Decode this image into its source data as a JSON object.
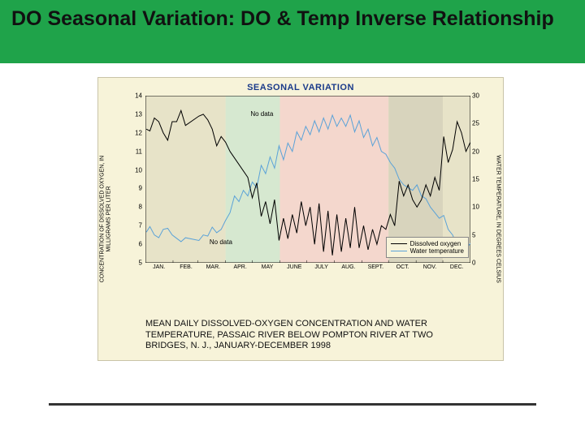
{
  "header": {
    "title": "DO Seasonal Variation: DO & Temp Inverse Relationship"
  },
  "chart": {
    "type": "line-dual-axis",
    "title": "SEASONAL VARIATION",
    "background_color": "#f7f3d9",
    "band_colors": [
      "#e7e3c8",
      "#d6e8d0",
      "#f4d7cd",
      "#d8d4bd",
      "#e7e3c8"
    ],
    "band_month_spans": [
      [
        0,
        3
      ],
      [
        3,
        5
      ],
      [
        5,
        9
      ],
      [
        9,
        11
      ],
      [
        11,
        12
      ]
    ],
    "x_months": [
      "JAN.",
      "FEB.",
      "MAR.",
      "APR.",
      "MAY",
      "JUNE",
      "JULY",
      "AUG.",
      "SEPT.",
      "OCT.",
      "NOV.",
      "DEC."
    ],
    "y_left": {
      "label": "CONCENTRATION OF DISSOLVED OXYGEN,\nIN MILLIGRAMS PER LITER",
      "min": 5,
      "max": 14,
      "ticks": [
        5,
        6,
        7,
        8,
        9,
        10,
        11,
        12,
        13,
        14
      ],
      "fontsize": 7
    },
    "y_right": {
      "label": "WATER TEMPERATURE, IN DEGREES CELSIUS",
      "min": 0,
      "max": 30,
      "ticks": [
        0,
        5,
        10,
        15,
        20,
        25,
        30
      ],
      "fontsize": 7
    },
    "series": {
      "do": {
        "label": "Dissolved oxygen",
        "color": "#000000",
        "line_width": 1,
        "nodata_ranges_days": [
          [
            47,
            56
          ],
          [
            100,
            112
          ]
        ],
        "values_by_day": [
          [
            1,
            12.2
          ],
          [
            5,
            12.1
          ],
          [
            10,
            12.8
          ],
          [
            15,
            12.6
          ],
          [
            20,
            12.0
          ],
          [
            25,
            11.6
          ],
          [
            30,
            12.6
          ],
          [
            35,
            12.6
          ],
          [
            40,
            13.2
          ],
          [
            45,
            12.4
          ],
          [
            60,
            12.9
          ],
          [
            65,
            13.0
          ],
          [
            70,
            12.7
          ],
          [
            75,
            12.2
          ],
          [
            80,
            11.3
          ],
          [
            85,
            11.8
          ],
          [
            90,
            11.5
          ],
          [
            95,
            11.0
          ],
          [
            115,
            9.6
          ],
          [
            120,
            8.5
          ],
          [
            125,
            9.3
          ],
          [
            130,
            7.5
          ],
          [
            135,
            8.3
          ],
          [
            140,
            7.1
          ],
          [
            145,
            8.4
          ],
          [
            150,
            6.2
          ],
          [
            155,
            7.4
          ],
          [
            160,
            6.3
          ],
          [
            165,
            7.6
          ],
          [
            170,
            6.6
          ],
          [
            175,
            8.3
          ],
          [
            180,
            7.0
          ],
          [
            185,
            8.0
          ],
          [
            190,
            6.0
          ],
          [
            195,
            8.2
          ],
          [
            200,
            5.6
          ],
          [
            205,
            7.8
          ],
          [
            210,
            5.4
          ],
          [
            215,
            7.6
          ],
          [
            220,
            5.6
          ],
          [
            225,
            7.4
          ],
          [
            230,
            5.8
          ],
          [
            235,
            8.0
          ],
          [
            240,
            5.8
          ],
          [
            245,
            7.0
          ],
          [
            250,
            5.7
          ],
          [
            255,
            6.8
          ],
          [
            260,
            6.0
          ],
          [
            265,
            7.0
          ],
          [
            270,
            6.8
          ],
          [
            275,
            7.6
          ],
          [
            280,
            7.0
          ],
          [
            285,
            9.4
          ],
          [
            290,
            8.6
          ],
          [
            295,
            9.2
          ],
          [
            300,
            8.4
          ],
          [
            305,
            8.0
          ],
          [
            310,
            8.4
          ],
          [
            315,
            9.2
          ],
          [
            320,
            8.6
          ],
          [
            325,
            9.6
          ],
          [
            330,
            8.9
          ],
          [
            335,
            11.8
          ],
          [
            340,
            10.4
          ],
          [
            345,
            11.1
          ],
          [
            350,
            12.6
          ],
          [
            355,
            12.0
          ],
          [
            360,
            11.0
          ],
          [
            365,
            11.5
          ]
        ]
      },
      "temp": {
        "label": "Water temperature",
        "color": "#5aa2d8",
        "line_width": 1,
        "nodata_ranges_days": [
          [
            47,
            56
          ]
        ],
        "values_by_day": [
          [
            1,
            5.5
          ],
          [
            5,
            6.5
          ],
          [
            10,
            5.0
          ],
          [
            15,
            4.5
          ],
          [
            20,
            6.0
          ],
          [
            25,
            6.2
          ],
          [
            30,
            5.0
          ],
          [
            35,
            4.4
          ],
          [
            40,
            3.8
          ],
          [
            45,
            4.5
          ],
          [
            60,
            4.0
          ],
          [
            65,
            5.0
          ],
          [
            70,
            4.8
          ],
          [
            75,
            6.4
          ],
          [
            80,
            5.4
          ],
          [
            85,
            6.0
          ],
          [
            90,
            7.6
          ],
          [
            95,
            9.0
          ],
          [
            100,
            12.0
          ],
          [
            105,
            11.0
          ],
          [
            110,
            13.0
          ],
          [
            115,
            12.0
          ],
          [
            120,
            14.5
          ],
          [
            125,
            13.5
          ],
          [
            130,
            17.5
          ],
          [
            135,
            16.0
          ],
          [
            140,
            19.0
          ],
          [
            145,
            17.0
          ],
          [
            150,
            21.0
          ],
          [
            155,
            18.5
          ],
          [
            160,
            21.5
          ],
          [
            165,
            20.0
          ],
          [
            170,
            23.5
          ],
          [
            175,
            22.0
          ],
          [
            180,
            24.5
          ],
          [
            185,
            23.0
          ],
          [
            190,
            25.5
          ],
          [
            195,
            23.5
          ],
          [
            200,
            26.0
          ],
          [
            205,
            24.0
          ],
          [
            210,
            26.5
          ],
          [
            215,
            24.5
          ],
          [
            220,
            26.0
          ],
          [
            225,
            24.5
          ],
          [
            230,
            26.5
          ],
          [
            235,
            23.5
          ],
          [
            240,
            25.5
          ],
          [
            245,
            22.5
          ],
          [
            250,
            24.0
          ],
          [
            255,
            21.0
          ],
          [
            260,
            22.5
          ],
          [
            265,
            20.0
          ],
          [
            270,
            19.5
          ],
          [
            275,
            18.0
          ],
          [
            280,
            17.0
          ],
          [
            285,
            15.0
          ],
          [
            290,
            14.0
          ],
          [
            295,
            13.5
          ],
          [
            300,
            13.0
          ],
          [
            305,
            14.0
          ],
          [
            310,
            12.0
          ],
          [
            315,
            11.5
          ],
          [
            320,
            10.0
          ],
          [
            325,
            9.0
          ],
          [
            330,
            8.0
          ],
          [
            335,
            8.5
          ],
          [
            340,
            6.0
          ],
          [
            345,
            5.0
          ],
          [
            350,
            3.0
          ],
          [
            355,
            4.5
          ],
          [
            360,
            2.5
          ],
          [
            365,
            3.5
          ]
        ]
      }
    },
    "annotations": {
      "no_data_1": {
        "text": "No data",
        "x_day": 118,
        "y_do": 13.2
      },
      "no_data_2": {
        "text": "No data",
        "x_day": 72,
        "y_do": 6.3
      }
    },
    "caption": "MEAN DAILY DISSOLVED-OXYGEN CONCENTRATION AND WATER TEMPERATURE, PASSAIC RIVER BELOW POMPTON RIVER AT TWO BRIDGES, N. J., JANUARY-DECEMBER 1998",
    "axis_color": "#000000",
    "tick_fontsize": 8
  }
}
